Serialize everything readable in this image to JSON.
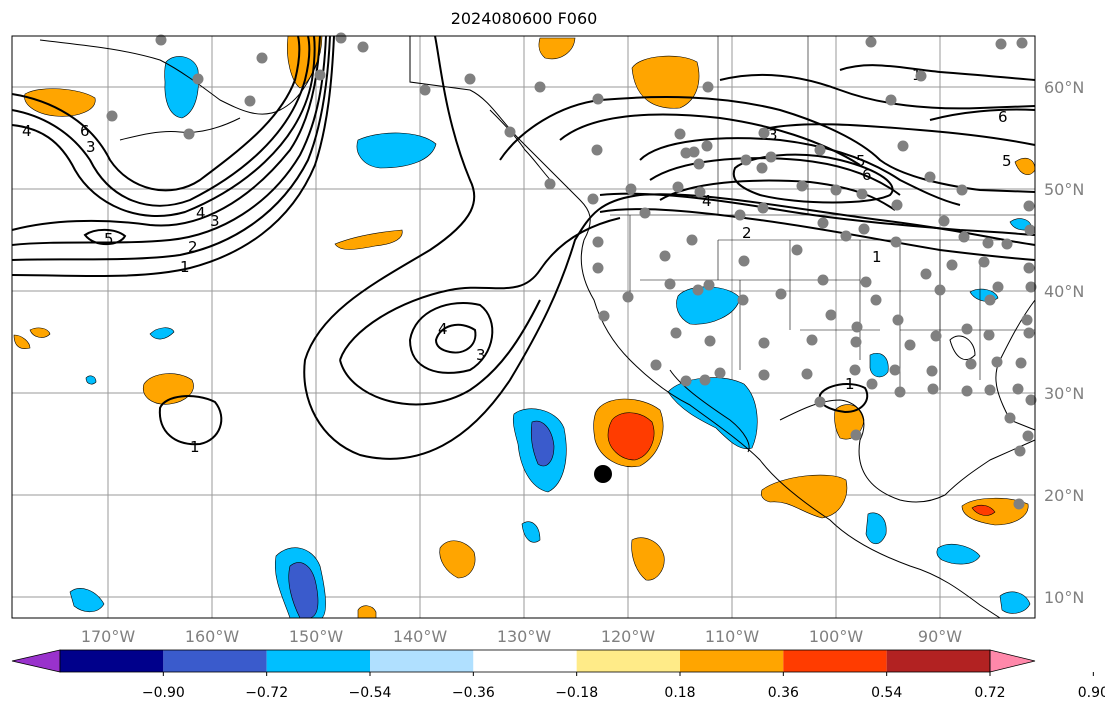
{
  "title": "2024080600 F060",
  "map": {
    "lon_labels": [
      "170°W",
      "160°W",
      "150°W",
      "140°W",
      "130°W",
      "120°W",
      "110°W",
      "100°W",
      "90°W"
    ],
    "lat_labels": [
      "60°N",
      "50°N",
      "40°N",
      "30°N",
      "20°N",
      "10°N"
    ],
    "contour_labels": [
      "4",
      "6",
      "3",
      "4",
      "3",
      "2",
      "1",
      "5",
      "4",
      "3",
      "1",
      "3",
      "4",
      "6",
      "5",
      "2",
      "1",
      "1",
      "6",
      "1",
      "5"
    ],
    "storm_marker": "black-dot"
  },
  "colorbar": {
    "ticks": [
      "−0.90",
      "−0.72",
      "−0.54",
      "−0.36",
      "−0.18",
      "0.18",
      "0.36",
      "0.54",
      "0.72",
      "0.90"
    ],
    "colors": [
      "#9932cc",
      "#00008b",
      "#3a5bcc",
      "#00bfff",
      "#b0e0ff",
      "#ffffff",
      "#ffeb88",
      "#ffa500",
      "#ff3c00",
      "#b22222",
      "#ff88aa"
    ]
  }
}
